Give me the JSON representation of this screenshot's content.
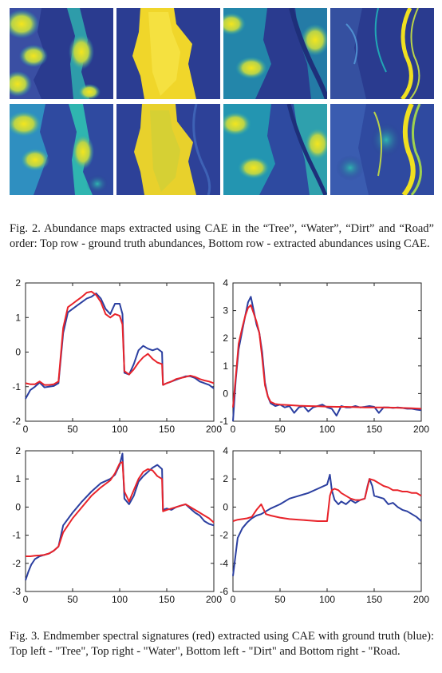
{
  "figure2": {
    "caption": "Fig. 2. Abundance maps extracted using CAE in the “Tree”, “Water”, “Dirt” and “Road” order: Top row - ground truth abundances, Bottom row - extracted abundances using CAE.",
    "rows": [
      "ground-truth",
      "extracted"
    ],
    "columns": [
      "Tree",
      "Water",
      "Dirt",
      "Road"
    ],
    "colors": {
      "low": "#2a3b8f",
      "mid": "#21a7b5",
      "high": "#f0e020"
    }
  },
  "figure3": {
    "caption": "Fig. 3. Endmember spectral signatures (red) extracted using CAE with ground truth (blue): Top left - \"Tree\", Top right - \"Water\", Bottom left - \"Dirt\" and Bottom right - \"Road.",
    "series_colors": {
      "extracted": "#e8232a",
      "ground_truth": "#2b3fa0"
    }
  },
  "chart_data": [
    {
      "type": "line",
      "panel": "top-left",
      "xlim": [
        0,
        200
      ],
      "ylim": [
        -2,
        2
      ],
      "xticks": [
        "0",
        "50",
        "100",
        "150",
        "200"
      ],
      "yticks": [
        "-2",
        "-1",
        "0",
        "1",
        "2"
      ],
      "series": [
        {
          "color": "#2b3fa0",
          "x": [
            0,
            5,
            10,
            15,
            20,
            25,
            30,
            35,
            40,
            45,
            50,
            55,
            60,
            65,
            70,
            75,
            80,
            85,
            90,
            95,
            100,
            103,
            105,
            110,
            115,
            120,
            125,
            130,
            135,
            140,
            145,
            146,
            150,
            155,
            160,
            165,
            170,
            175,
            180,
            185,
            190,
            195,
            200
          ],
          "y": [
            -1.35,
            -1.1,
            -1.0,
            -0.88,
            -1.02,
            -1.0,
            -0.98,
            -0.9,
            0.55,
            1.15,
            1.25,
            1.35,
            1.45,
            1.55,
            1.6,
            1.7,
            1.55,
            1.25,
            1.1,
            1.4,
            1.4,
            1.1,
            -0.6,
            -0.65,
            -0.35,
            0.05,
            0.18,
            0.1,
            0.05,
            0.1,
            0.0,
            -0.95,
            -0.9,
            -0.85,
            -0.8,
            -0.75,
            -0.7,
            -0.7,
            -0.75,
            -0.85,
            -0.9,
            -0.95,
            -1.05
          ]
        },
        {
          "color": "#e8232a",
          "x": [
            0,
            5,
            10,
            15,
            20,
            25,
            30,
            35,
            40,
            45,
            50,
            55,
            60,
            65,
            70,
            75,
            80,
            85,
            90,
            95,
            100,
            103,
            105,
            110,
            115,
            120,
            125,
            130,
            135,
            140,
            145,
            146,
            150,
            155,
            160,
            165,
            170,
            175,
            180,
            185,
            190,
            195,
            200
          ],
          "y": [
            -0.9,
            -0.93,
            -0.93,
            -0.85,
            -0.95,
            -0.95,
            -0.93,
            -0.85,
            0.7,
            1.3,
            1.4,
            1.5,
            1.6,
            1.72,
            1.75,
            1.65,
            1.45,
            1.1,
            1.0,
            1.1,
            1.05,
            0.8,
            -0.55,
            -0.65,
            -0.5,
            -0.3,
            -0.15,
            -0.05,
            -0.2,
            -0.3,
            -0.35,
            -0.95,
            -0.9,
            -0.85,
            -0.78,
            -0.75,
            -0.72,
            -0.68,
            -0.72,
            -0.78,
            -0.82,
            -0.85,
            -0.9
          ]
        }
      ]
    },
    {
      "type": "line",
      "panel": "top-right",
      "xlim": [
        0,
        200
      ],
      "ylim": [
        -1,
        4
      ],
      "xticks": [
        "0",
        "50",
        "100",
        "150",
        "200"
      ],
      "yticks": [
        "-1",
        "0",
        "1",
        "2",
        "3",
        "4"
      ],
      "series": [
        {
          "color": "#2b3fa0",
          "x": [
            0,
            3,
            6,
            10,
            13,
            16,
            19,
            22,
            25,
            28,
            31,
            34,
            37,
            40,
            45,
            50,
            55,
            60,
            65,
            70,
            75,
            80,
            85,
            90,
            95,
            100,
            105,
            110,
            115,
            120,
            125,
            130,
            135,
            140,
            145,
            150,
            155,
            160,
            165,
            170,
            175,
            180,
            185,
            190,
            195,
            200
          ],
          "y": [
            -1.0,
            0.5,
            1.6,
            2.3,
            2.8,
            3.3,
            3.5,
            3.0,
            2.5,
            2.2,
            1.5,
            0.4,
            -0.1,
            -0.35,
            -0.45,
            -0.4,
            -0.5,
            -0.45,
            -0.7,
            -0.5,
            -0.45,
            -0.65,
            -0.5,
            -0.45,
            -0.4,
            -0.5,
            -0.55,
            -0.8,
            -0.45,
            -0.5,
            -0.5,
            -0.45,
            -0.5,
            -0.48,
            -0.45,
            -0.48,
            -0.7,
            -0.5,
            -0.5,
            -0.52,
            -0.5,
            -0.52,
            -0.55,
            -0.55,
            -0.58,
            -0.6
          ]
        },
        {
          "color": "#e8232a",
          "x": [
            0,
            3,
            6,
            10,
            13,
            16,
            19,
            22,
            25,
            28,
            31,
            34,
            37,
            40,
            45,
            50,
            60,
            70,
            80,
            90,
            100,
            110,
            120,
            130,
            140,
            150,
            160,
            170,
            180,
            190,
            200
          ],
          "y": [
            -0.5,
            0.6,
            1.8,
            2.4,
            2.8,
            3.1,
            3.2,
            2.9,
            2.6,
            2.2,
            1.3,
            0.3,
            -0.1,
            -0.3,
            -0.38,
            -0.4,
            -0.42,
            -0.44,
            -0.45,
            -0.46,
            -0.47,
            -0.48,
            -0.48,
            -0.49,
            -0.5,
            -0.5,
            -0.5,
            -0.51,
            -0.52,
            -0.53,
            -0.55
          ]
        }
      ]
    },
    {
      "type": "line",
      "panel": "bottom-left",
      "xlim": [
        0,
        200
      ],
      "ylim": [
        -3,
        2
      ],
      "xticks": [
        "0",
        "50",
        "100",
        "150",
        "200"
      ],
      "yticks": [
        "-3",
        "-2",
        "-1",
        "0",
        "1",
        "2"
      ],
      "series": [
        {
          "color": "#2b3fa0",
          "x": [
            0,
            3,
            6,
            10,
            15,
            20,
            25,
            30,
            35,
            40,
            50,
            60,
            70,
            80,
            90,
            95,
            100,
            103,
            105,
            110,
            115,
            120,
            125,
            130,
            135,
            140,
            145,
            146,
            150,
            155,
            160,
            165,
            170,
            175,
            180,
            185,
            190,
            195,
            200
          ],
          "y": [
            -2.6,
            -2.3,
            -2.05,
            -1.85,
            -1.75,
            -1.7,
            -1.65,
            -1.55,
            -1.4,
            -0.65,
            -0.2,
            0.2,
            0.55,
            0.85,
            1.0,
            1.15,
            1.5,
            1.9,
            0.3,
            0.1,
            0.4,
            0.9,
            1.1,
            1.25,
            1.4,
            1.5,
            1.35,
            -0.1,
            -0.05,
            -0.1,
            0.0,
            0.05,
            0.1,
            -0.05,
            -0.2,
            -0.3,
            -0.5,
            -0.6,
            -0.65
          ]
        },
        {
          "color": "#e8232a",
          "x": [
            0,
            5,
            10,
            15,
            20,
            25,
            30,
            35,
            40,
            50,
            60,
            70,
            80,
            90,
            95,
            100,
            103,
            105,
            110,
            115,
            120,
            125,
            130,
            135,
            140,
            145,
            146,
            150,
            155,
            160,
            165,
            170,
            175,
            180,
            185,
            190,
            195,
            200
          ],
          "y": [
            -1.75,
            -1.75,
            -1.73,
            -1.72,
            -1.7,
            -1.65,
            -1.55,
            -1.4,
            -0.9,
            -0.4,
            0.0,
            0.4,
            0.7,
            0.95,
            1.2,
            1.55,
            1.6,
            0.55,
            0.2,
            0.6,
            1.0,
            1.25,
            1.35,
            1.3,
            1.1,
            1.0,
            -0.15,
            -0.1,
            -0.05,
            0.0,
            0.05,
            0.1,
            0.0,
            -0.1,
            -0.2,
            -0.3,
            -0.4,
            -0.55
          ]
        }
      ]
    },
    {
      "type": "line",
      "panel": "bottom-right",
      "xlim": [
        0,
        200
      ],
      "ylim": [
        -6,
        4
      ],
      "xticks": [
        "0",
        "50",
        "100",
        "150",
        "200"
      ],
      "yticks": [
        "-6",
        "-4",
        "-2",
        "0",
        "2",
        "4"
      ],
      "series": [
        {
          "color": "#2b3fa0",
          "x": [
            0,
            2,
            5,
            10,
            15,
            20,
            25,
            30,
            35,
            40,
            50,
            60,
            70,
            80,
            90,
            100,
            103,
            105,
            108,
            112,
            115,
            120,
            125,
            130,
            135,
            140,
            143,
            145,
            148,
            150,
            155,
            160,
            165,
            170,
            175,
            180,
            185,
            190,
            195,
            200
          ],
          "y": [
            -4.9,
            -3.8,
            -2.2,
            -1.5,
            -1.1,
            -0.8,
            -0.6,
            -0.5,
            -0.3,
            -0.1,
            0.2,
            0.6,
            0.8,
            1.0,
            1.3,
            1.6,
            2.3,
            1.2,
            0.5,
            0.2,
            0.4,
            0.2,
            0.5,
            0.3,
            0.5,
            0.6,
            1.5,
            2.0,
            1.5,
            0.8,
            0.7,
            0.6,
            0.2,
            0.3,
            0.0,
            -0.2,
            -0.3,
            -0.5,
            -0.7,
            -1.0
          ]
        },
        {
          "color": "#e8232a",
          "x": [
            0,
            5,
            10,
            15,
            20,
            25,
            30,
            35,
            40,
            50,
            60,
            70,
            80,
            90,
            100,
            103,
            105,
            108,
            112,
            115,
            120,
            125,
            130,
            135,
            140,
            145,
            150,
            155,
            160,
            165,
            170,
            175,
            180,
            185,
            190,
            195,
            200
          ],
          "y": [
            -1.0,
            -0.9,
            -0.85,
            -0.8,
            -0.7,
            -0.2,
            0.2,
            -0.5,
            -0.6,
            -0.75,
            -0.85,
            -0.9,
            -0.95,
            -1.0,
            -1.0,
            0.8,
            1.2,
            1.3,
            1.2,
            1.0,
            0.8,
            0.6,
            0.5,
            0.5,
            0.6,
            2.0,
            1.9,
            1.7,
            1.5,
            1.4,
            1.2,
            1.2,
            1.1,
            1.1,
            1.0,
            1.0,
            0.8
          ]
        }
      ]
    }
  ]
}
